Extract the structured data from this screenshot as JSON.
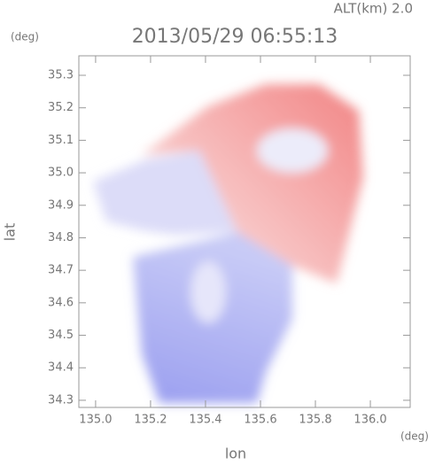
{
  "chart_data": {
    "type": "image",
    "title": "2013/05/29 06:55:13",
    "annotation": "ALT(km) 2.0",
    "x_label": "lon",
    "y_label": "lat",
    "x_unit": "(deg)",
    "y_unit": "(deg)",
    "xlim": [
      134.939,
      136.145
    ],
    "ylim": [
      34.278,
      35.36
    ],
    "xticks": [
      {
        "value": 135.0,
        "label": "135.0"
      },
      135.2,
      135.4,
      135.6,
      135.8,
      {
        "value": 136.0,
        "label": "136.0"
      }
    ],
    "yticks": [
      34.3,
      34.4,
      34.5,
      34.6,
      34.7,
      34.8,
      34.9,
      {
        "value": 35.0,
        "label": "35.0"
      },
      35.1,
      35.2,
      35.3
    ]
  }
}
